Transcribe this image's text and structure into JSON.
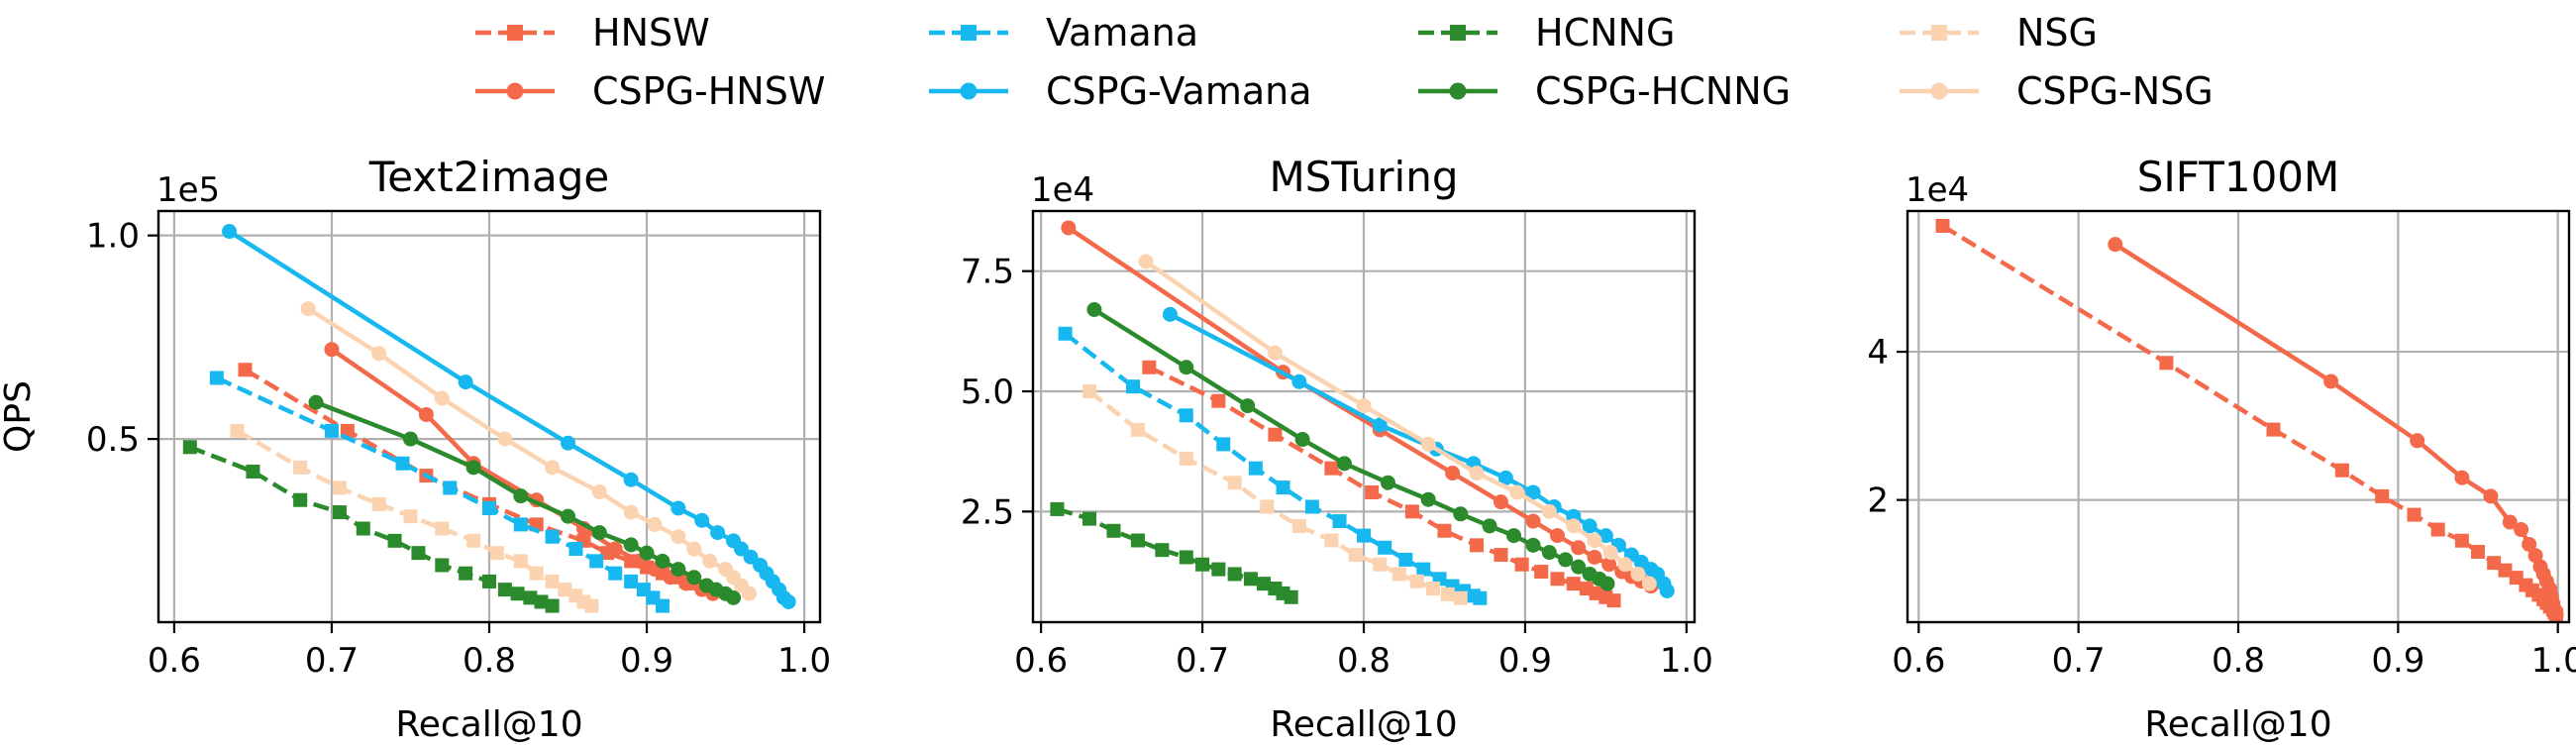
{
  "figure": {
    "legend": [
      {
        "name": "HNSW",
        "color": "#f4694a",
        "dashed": true,
        "marker": "square"
      },
      {
        "name": "Vamana",
        "color": "#17b8f0",
        "dashed": true,
        "marker": "square"
      },
      {
        "name": "HCNNG",
        "color": "#2b8a2b",
        "dashed": true,
        "marker": "square"
      },
      {
        "name": "NSG",
        "color": "#fbd3b0",
        "dashed": true,
        "marker": "square"
      },
      {
        "name": "CSPG-HNSW",
        "color": "#f4694a",
        "dashed": false,
        "marker": "circle"
      },
      {
        "name": "CSPG-Vamana",
        "color": "#17b8f0",
        "dashed": false,
        "marker": "circle"
      },
      {
        "name": "CSPG-HCNNG",
        "color": "#2b8a2b",
        "dashed": false,
        "marker": "circle"
      },
      {
        "name": "CSPG-NSG",
        "color": "#fbd3b0",
        "dashed": false,
        "marker": "circle"
      }
    ]
  },
  "chart_data": [
    {
      "type": "line",
      "title": "Text2image",
      "xlabel": "Recall@10",
      "ylabel": "QPS",
      "y_multiplier": "1e5",
      "xlim": [
        0.59,
        1.01
      ],
      "ylim": [
        0.05,
        1.06
      ],
      "xticks": [
        0.6,
        0.7,
        0.8,
        0.9,
        1.0
      ],
      "xtick_labels": [
        "0.6",
        "0.7",
        "0.8",
        "0.9",
        "1.0"
      ],
      "yticks": [
        0.5,
        1.0
      ],
      "ytick_labels": [
        "0.5",
        "1.0"
      ],
      "grid": true,
      "series": [
        {
          "name": "HNSW",
          "x": [
            0.645,
            0.71,
            0.76,
            0.8,
            0.83,
            0.86,
            0.875,
            0.89,
            0.9,
            0.91,
            0.918,
            0.925,
            0.93
          ],
          "y": [
            0.67,
            0.52,
            0.41,
            0.34,
            0.29,
            0.25,
            0.22,
            0.2,
            0.185,
            0.17,
            0.16,
            0.15,
            0.145
          ]
        },
        {
          "name": "Vamana",
          "x": [
            0.627,
            0.7,
            0.745,
            0.775,
            0.8,
            0.82,
            0.84,
            0.855,
            0.868,
            0.88,
            0.89,
            0.898,
            0.904,
            0.91
          ],
          "y": [
            0.65,
            0.52,
            0.44,
            0.38,
            0.33,
            0.29,
            0.26,
            0.23,
            0.2,
            0.17,
            0.15,
            0.13,
            0.11,
            0.09
          ]
        },
        {
          "name": "HCNNG",
          "x": [
            0.61,
            0.65,
            0.68,
            0.705,
            0.72,
            0.74,
            0.755,
            0.77,
            0.785,
            0.8,
            0.81,
            0.818,
            0.826,
            0.833,
            0.84
          ],
          "y": [
            0.48,
            0.42,
            0.35,
            0.32,
            0.28,
            0.25,
            0.22,
            0.19,
            0.17,
            0.15,
            0.13,
            0.12,
            0.11,
            0.1,
            0.09
          ]
        },
        {
          "name": "NSG",
          "x": [
            0.64,
            0.68,
            0.705,
            0.73,
            0.75,
            0.77,
            0.79,
            0.805,
            0.82,
            0.83,
            0.84,
            0.848,
            0.855,
            0.86,
            0.865
          ],
          "y": [
            0.52,
            0.43,
            0.38,
            0.34,
            0.31,
            0.28,
            0.25,
            0.22,
            0.2,
            0.17,
            0.15,
            0.13,
            0.115,
            0.1,
            0.09
          ]
        },
        {
          "name": "CSPG-HNSW",
          "x": [
            0.7,
            0.76,
            0.79,
            0.83,
            0.86,
            0.88,
            0.895,
            0.905,
            0.915,
            0.925,
            0.935,
            0.942
          ],
          "y": [
            0.72,
            0.56,
            0.44,
            0.35,
            0.28,
            0.23,
            0.2,
            0.18,
            0.16,
            0.145,
            0.13,
            0.12
          ]
        },
        {
          "name": "CSPG-Vamana",
          "x": [
            0.635,
            0.785,
            0.85,
            0.89,
            0.92,
            0.935,
            0.945,
            0.955,
            0.96,
            0.966,
            0.972,
            0.976,
            0.98,
            0.984,
            0.987,
            0.99
          ],
          "y": [
            1.01,
            0.64,
            0.49,
            0.4,
            0.33,
            0.3,
            0.27,
            0.25,
            0.23,
            0.21,
            0.19,
            0.17,
            0.15,
            0.13,
            0.11,
            0.1
          ]
        },
        {
          "name": "CSPG-HCNNG",
          "x": [
            0.69,
            0.75,
            0.79,
            0.82,
            0.85,
            0.87,
            0.89,
            0.9,
            0.91,
            0.92,
            0.93,
            0.938,
            0.944,
            0.95,
            0.955
          ],
          "y": [
            0.59,
            0.5,
            0.43,
            0.36,
            0.31,
            0.27,
            0.24,
            0.22,
            0.2,
            0.18,
            0.16,
            0.14,
            0.13,
            0.12,
            0.11
          ]
        },
        {
          "name": "CSPG-NSG",
          "x": [
            0.685,
            0.73,
            0.77,
            0.81,
            0.84,
            0.87,
            0.89,
            0.905,
            0.92,
            0.93,
            0.94,
            0.95,
            0.955,
            0.96,
            0.965
          ],
          "y": [
            0.82,
            0.71,
            0.6,
            0.5,
            0.43,
            0.37,
            0.32,
            0.29,
            0.26,
            0.23,
            0.2,
            0.18,
            0.16,
            0.14,
            0.12
          ]
        }
      ]
    },
    {
      "type": "line",
      "title": "MSTuring",
      "xlabel": "Recall@10",
      "ylabel": "",
      "y_multiplier": "1e4",
      "xlim": [
        0.595,
        1.005
      ],
      "ylim": [
        0.2,
        8.75
      ],
      "xticks": [
        0.6,
        0.7,
        0.8,
        0.9,
        1.0
      ],
      "xtick_labels": [
        "0.6",
        "0.7",
        "0.8",
        "0.9",
        "1.0"
      ],
      "yticks": [
        2.5,
        5.0,
        7.5
      ],
      "ytick_labels": [
        "2.5",
        "5.0",
        "7.5"
      ],
      "grid": true,
      "series": [
        {
          "name": "HNSW",
          "x": [
            0.667,
            0.71,
            0.745,
            0.78,
            0.805,
            0.83,
            0.85,
            0.87,
            0.885,
            0.898,
            0.91,
            0.92,
            0.93,
            0.938,
            0.944,
            0.95,
            0.955
          ],
          "y": [
            5.5,
            4.8,
            4.1,
            3.4,
            2.9,
            2.5,
            2.1,
            1.8,
            1.6,
            1.4,
            1.25,
            1.1,
            1.0,
            0.9,
            0.8,
            0.72,
            0.65
          ]
        },
        {
          "name": "Vamana",
          "x": [
            0.615,
            0.657,
            0.69,
            0.713,
            0.733,
            0.75,
            0.768,
            0.785,
            0.8,
            0.813,
            0.826,
            0.837,
            0.847,
            0.855,
            0.862,
            0.868,
            0.872
          ],
          "y": [
            6.2,
            5.1,
            4.5,
            3.9,
            3.4,
            3.0,
            2.6,
            2.3,
            2.0,
            1.75,
            1.5,
            1.3,
            1.1,
            0.95,
            0.85,
            0.75,
            0.7
          ]
        },
        {
          "name": "HCNNG",
          "x": [
            0.61,
            0.63,
            0.645,
            0.66,
            0.675,
            0.69,
            0.7,
            0.71,
            0.72,
            0.73,
            0.738,
            0.745,
            0.75,
            0.755
          ],
          "y": [
            2.55,
            2.35,
            2.1,
            1.9,
            1.7,
            1.55,
            1.4,
            1.3,
            1.2,
            1.1,
            1.0,
            0.9,
            0.8,
            0.72
          ]
        },
        {
          "name": "NSG",
          "x": [
            0.63,
            0.66,
            0.69,
            0.72,
            0.74,
            0.76,
            0.78,
            0.795,
            0.81,
            0.822,
            0.833,
            0.843,
            0.852,
            0.86
          ],
          "y": [
            5.0,
            4.2,
            3.6,
            3.1,
            2.6,
            2.2,
            1.9,
            1.6,
            1.4,
            1.2,
            1.05,
            0.9,
            0.78,
            0.7
          ]
        },
        {
          "name": "CSPG-HNSW",
          "x": [
            0.617,
            0.75,
            0.81,
            0.855,
            0.885,
            0.905,
            0.92,
            0.933,
            0.943,
            0.952,
            0.96,
            0.966,
            0.972,
            0.978
          ],
          "y": [
            8.4,
            5.4,
            4.2,
            3.3,
            2.7,
            2.3,
            2.0,
            1.75,
            1.55,
            1.4,
            1.25,
            1.15,
            1.05,
            0.95
          ]
        },
        {
          "name": "CSPG-Vamana",
          "x": [
            0.68,
            0.76,
            0.81,
            0.845,
            0.868,
            0.888,
            0.905,
            0.918,
            0.93,
            0.94,
            0.95,
            0.958,
            0.966,
            0.972,
            0.978,
            0.982,
            0.986,
            0.988
          ],
          "y": [
            6.6,
            5.2,
            4.3,
            3.8,
            3.5,
            3.2,
            2.9,
            2.6,
            2.4,
            2.2,
            2.0,
            1.8,
            1.6,
            1.45,
            1.3,
            1.2,
            1.0,
            0.85
          ]
        },
        {
          "name": "CSPG-HCNNG",
          "x": [
            0.633,
            0.69,
            0.728,
            0.762,
            0.788,
            0.815,
            0.84,
            0.86,
            0.878,
            0.893,
            0.905,
            0.915,
            0.925,
            0.933,
            0.94,
            0.946,
            0.951
          ],
          "y": [
            6.7,
            5.5,
            4.7,
            4.0,
            3.5,
            3.1,
            2.75,
            2.45,
            2.2,
            2.0,
            1.8,
            1.65,
            1.5,
            1.35,
            1.2,
            1.1,
            1.0
          ]
        },
        {
          "name": "CSPG-NSG",
          "x": [
            0.665,
            0.745,
            0.8,
            0.84,
            0.87,
            0.895,
            0.915,
            0.93,
            0.943,
            0.953,
            0.962,
            0.97,
            0.977
          ],
          "y": [
            7.7,
            5.8,
            4.7,
            3.9,
            3.3,
            2.9,
            2.5,
            2.2,
            1.9,
            1.65,
            1.4,
            1.2,
            1.0
          ]
        }
      ]
    },
    {
      "type": "line",
      "title": "SIFT100M",
      "xlabel": "Recall@10",
      "ylabel": "",
      "y_multiplier": "1e4",
      "xlim": [
        0.593,
        1.007
      ],
      "ylim": [
        0.35,
        5.9
      ],
      "xticks": [
        0.6,
        0.7,
        0.8,
        0.9,
        1.0
      ],
      "xtick_labels": [
        "0.6",
        "0.7",
        "0.8",
        "0.9",
        "1.0"
      ],
      "yticks": [
        2,
        4
      ],
      "ytick_labels": [
        "2",
        "4"
      ],
      "grid": true,
      "series": [
        {
          "name": "HNSW",
          "x": [
            0.615,
            0.755,
            0.822,
            0.865,
            0.89,
            0.91,
            0.925,
            0.94,
            0.95,
            0.96,
            0.967,
            0.974,
            0.98,
            0.984,
            0.988,
            0.991,
            0.993,
            0.995,
            0.997,
            0.998,
            0.999
          ],
          "y": [
            5.7,
            3.85,
            2.95,
            2.4,
            2.05,
            1.8,
            1.6,
            1.45,
            1.3,
            1.15,
            1.05,
            0.95,
            0.85,
            0.78,
            0.72,
            0.66,
            0.61,
            0.56,
            0.52,
            0.48,
            0.45
          ]
        },
        {
          "name": "CSPG-HNSW",
          "x": [
            0.723,
            0.858,
            0.912,
            0.94,
            0.958,
            0.97,
            0.977,
            0.982,
            0.986,
            0.989,
            0.991,
            0.993,
            0.995,
            0.996,
            0.997,
            0.998,
            0.999
          ],
          "y": [
            5.45,
            3.6,
            2.8,
            2.3,
            2.05,
            1.7,
            1.6,
            1.4,
            1.25,
            1.1,
            1.0,
            0.9,
            0.8,
            0.7,
            0.6,
            0.5,
            0.45
          ]
        }
      ]
    }
  ]
}
